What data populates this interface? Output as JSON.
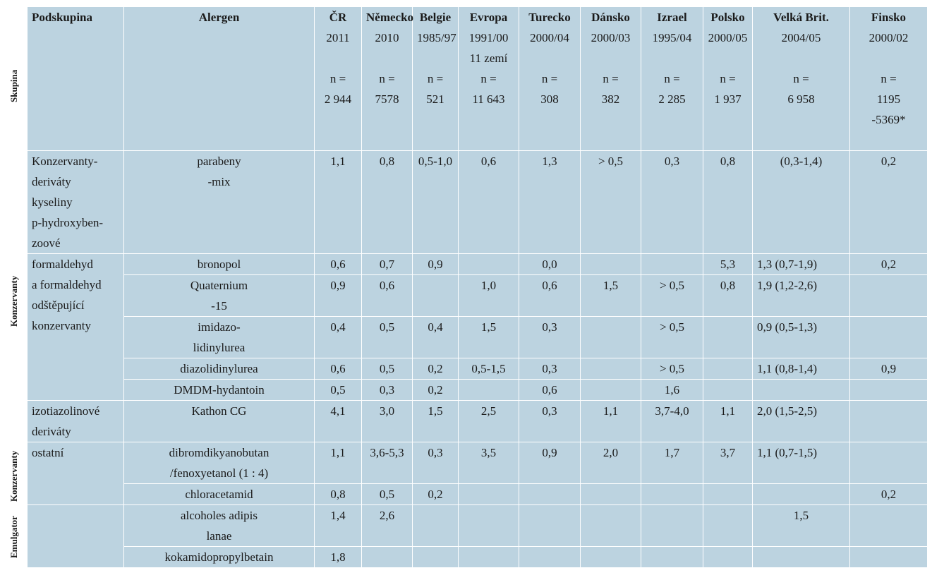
{
  "side_labels": {
    "skupina": "Skupina",
    "konzervanty_1": "Konzervanty",
    "konzervanty_2": "Konzervanty",
    "emulgator": "Emulgator"
  },
  "header": {
    "podskupina": "Podskupina",
    "alergen": "Alergen",
    "countries": [
      {
        "name": "ČR",
        "years": "2011",
        "n": "n =\n2 944"
      },
      {
        "name": "Německo",
        "years": "2010",
        "n": "n =\n7578"
      },
      {
        "name": "Belgie",
        "years": "1985/97",
        "n": "n =\n521"
      },
      {
        "name": "Evropa",
        "years": "1991/00\n11 zemí",
        "n": "n =\n11 643"
      },
      {
        "name": "Turecko",
        "years": "2000/04",
        "n": "n =\n308"
      },
      {
        "name": "Dánsko",
        "years": "2000/03",
        "n": "n =\n382"
      },
      {
        "name": "Izrael",
        "years": "1995/04",
        "n": "n =\n2 285"
      },
      {
        "name": "Polsko",
        "years": "2000/05",
        "n": "n =\n1 937"
      },
      {
        "name": "Velká Brit.",
        "years": "2004/05",
        "n": "n =\n6 958"
      },
      {
        "name": "Finsko",
        "years": "2000/02",
        "n": "n =\n1195\n-5369*"
      }
    ]
  },
  "groups": {
    "g1": "Konzervanty-\nderiváty\nkyseliny\np-hydroxyben-\nzoové",
    "g2": "formaldehyd\na formaldehyd\nodštěpující\nkonzervanty",
    "g3": "izotiazolinové\nderiváty",
    "g4": "ostatní"
  },
  "rows": [
    {
      "allergen": "parabeny\n-mix",
      "values": [
        "1,1",
        "0,8",
        "0,5-1,0",
        "0,6",
        "1,3",
        "> 0,5",
        "0,3",
        "0,8",
        "(0,3-1,4)",
        "0,2"
      ]
    },
    {
      "allergen": "bronopol",
      "values": [
        "0,6",
        "0,7",
        "0,9",
        "",
        "0,0",
        "",
        "",
        "5,3",
        "1,3  (0,7-1,9)",
        "0,2"
      ]
    },
    {
      "allergen": "Quaternium\n-15",
      "values": [
        "0,9",
        "0,6",
        "",
        "1,0",
        "0,6",
        "1,5",
        "> 0,5",
        "0,8",
        "1,9  (1,2-2,6)",
        ""
      ]
    },
    {
      "allergen": "imidazo-\nlidinylurea",
      "values": [
        "0,4",
        "0,5",
        "0,4",
        "1,5",
        "0,3",
        "",
        "> 0,5",
        "",
        "0,9  (0,5-1,3)",
        ""
      ]
    },
    {
      "allergen": "diazolidinylurea",
      "values": [
        "0,6",
        "0,5",
        "0,2",
        "0,5-1,5",
        "0,3",
        "",
        "> 0,5",
        "",
        "1,1  (0,8-1,4)",
        "0,9"
      ]
    },
    {
      "allergen": "DMDM-hydantoin",
      "values": [
        "0,5",
        "0,3",
        "0,2",
        "",
        "0,6",
        "",
        "1,6",
        "",
        "",
        ""
      ]
    },
    {
      "allergen": "Kathon CG",
      "values": [
        "4,1",
        "3,0",
        "1,5",
        "2,5",
        "0,3",
        "1,1",
        "3,7-4,0",
        "1,1",
        "2,0  (1,5-2,5)",
        ""
      ]
    },
    {
      "allergen": "dibromdikyanobutan\n/fenoxyetanol (1 : 4)",
      "values": [
        "1,1",
        "3,6-5,3",
        "0,3",
        "3,5",
        "0,9",
        "2,0",
        "1,7",
        "3,7",
        "1,1  (0,7-1,5)",
        ""
      ]
    },
    {
      "allergen": "chloracetamid",
      "values": [
        "0,8",
        "0,5",
        "0,2",
        "",
        "",
        "",
        "",
        "",
        "",
        "0,2"
      ]
    },
    {
      "allergen": "alcoholes adipis\nlanae",
      "values": [
        "1,4",
        "2,6",
        "",
        "",
        "",
        "",
        "",
        "",
        "1,5",
        ""
      ]
    },
    {
      "allergen": "kokamidopropylbetain",
      "values": [
        "1,8",
        "",
        "",
        "",
        "",
        "",
        "",
        "",
        "",
        ""
      ]
    }
  ]
}
